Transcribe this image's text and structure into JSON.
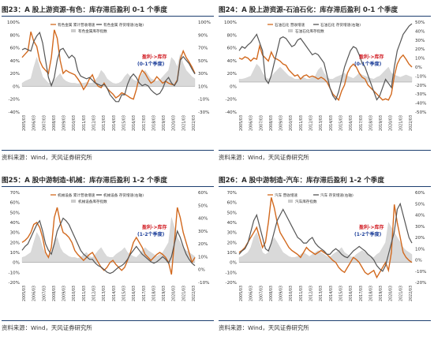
{
  "chart_data": [
    {
      "type": "line",
      "title": "图23：A 股上游资源-有色：库存滞后盈利 0-1 个季度",
      "source": "资料来源：Wind，天风证券研究所",
      "annotation_line1": "盈利->库存",
      "annotation_line2": "(0-1个季度)",
      "legend_position": "top-center",
      "ylim_left": [
        -40,
        100
      ],
      "ylim_right": [
        -30,
        100
      ],
      "yticks_left": [
        "100%",
        "80%",
        "60%",
        "40%",
        "20%",
        "0%",
        "-20%",
        "-40%"
      ],
      "yticks_right": [
        "100%",
        "90%",
        "70%",
        "50%",
        "30%",
        "10%",
        "-10%",
        "-30%"
      ],
      "xticks": [
        "2005/03",
        "2006/03",
        "2007/03",
        "2008/03",
        "2009/03",
        "2010/03",
        "2011/03",
        "2012/03",
        "2013/03",
        "2014/03",
        "2015/03",
        "2016/03",
        "2017/03",
        "2018/03",
        "2019/03",
        "2020/03",
        "2021/03",
        "2022/03"
      ],
      "series": [
        {
          "name": "有色金属 累计营收增速",
          "axis": "left",
          "color": "#d2691e",
          "values": [
            45,
            50,
            55,
            85,
            70,
            62,
            40,
            30,
            25,
            20,
            45,
            88,
            75,
            40,
            20,
            25,
            22,
            20,
            18,
            12,
            5,
            -5,
            2,
            12,
            18,
            6,
            0,
            -2,
            5,
            -3,
            -8,
            -12,
            -18,
            -15,
            -10,
            -12,
            -15,
            -18,
            -20,
            -5,
            15,
            25,
            20,
            12,
            5,
            8,
            15,
            10,
            5,
            8,
            5,
            3,
            2,
            10,
            42,
            55,
            45,
            38,
            30,
            20
          ]
        },
        {
          "name": "有色金属 存货增速(右轴)",
          "axis": "right",
          "color": "#555555",
          "values": [
            60,
            62,
            60,
            58,
            72,
            80,
            85,
            70,
            45,
            20,
            8,
            20,
            45,
            60,
            62,
            55,
            48,
            52,
            48,
            30,
            22,
            20,
            18,
            20,
            16,
            12,
            10,
            8,
            10,
            5,
            -5,
            -10,
            -15,
            -15,
            -5,
            -5,
            10,
            20,
            25,
            20,
            12,
            8,
            10,
            8,
            2,
            -2,
            -5,
            -3,
            4,
            15,
            20,
            12,
            8,
            15,
            45,
            50,
            45,
            40,
            32,
            25
          ]
        },
        {
          "name": "有色金属库存指数",
          "axis": "left",
          "color": "#c8c8c8",
          "kind": "area",
          "values": [
            5,
            8,
            10,
            12,
            30,
            45,
            30,
            15,
            10,
            5,
            5,
            10,
            15,
            20,
            12,
            8,
            6,
            5,
            5,
            4,
            5,
            5,
            6,
            5,
            5,
            10,
            15,
            25,
            20,
            12,
            8,
            5,
            4,
            5,
            8,
            15,
            20,
            15,
            10,
            8,
            12,
            20,
            25,
            18,
            12,
            10,
            8,
            10,
            15,
            20,
            25,
            45,
            40,
            30,
            50,
            35,
            25,
            20,
            15,
            12
          ]
        }
      ]
    },
    {
      "type": "line",
      "title": "图24：A 股上游资源-石油石化：库存滞后盈利 0-1 个季度",
      "source": "资料来源：Wind，天风证券研究所",
      "annotation_line1": "盈利->库存",
      "annotation_line2": "(0-1个季度)",
      "legend_position": "top-center",
      "ylim_left": [
        -50,
        100
      ],
      "ylim_right": [
        -50,
        60
      ],
      "yticks_left": [
        "100%",
        "80%",
        "60%",
        "40%",
        "20%",
        "0%",
        "-20%",
        "-40%"
      ],
      "yticks_right": [
        "50%",
        "40%",
        "30%",
        "20%",
        "10%",
        "0%",
        "-10%",
        "-20%",
        "-30%",
        "-40%",
        "-50%"
      ],
      "xticks": [
        "2005/03",
        "2006/03",
        "2007/03",
        "2008/03",
        "2009/03",
        "2010/03",
        "2011/03",
        "2012/03",
        "2013/03",
        "2014/03",
        "2015/03",
        "2016/03",
        "2017/03",
        "2018/03",
        "2019/03",
        "2020/03",
        "2021/03",
        "2022/03"
      ],
      "series": [
        {
          "name": "石油石化 营收增速",
          "axis": "left",
          "color": "#d2691e",
          "values": [
            40,
            38,
            42,
            40,
            35,
            40,
            38,
            60,
            45,
            40,
            35,
            50,
            40,
            38,
            35,
            30,
            28,
            20,
            15,
            10,
            12,
            5,
            10,
            12,
            8,
            10,
            8,
            5,
            8,
            5,
            0,
            -10,
            -20,
            -25,
            -30,
            -15,
            -5,
            15,
            25,
            30,
            25,
            15,
            8,
            5,
            -5,
            -10,
            -15,
            -20,
            -25,
            -30,
            -28,
            -30,
            -20,
            10,
            30,
            40,
            45,
            38,
            30,
            25
          ]
        },
        {
          "name": "石油石化 存货增速(右轴)",
          "axis": "right",
          "color": "#555555",
          "values": [
            25,
            30,
            28,
            32,
            35,
            40,
            45,
            35,
            25,
            -10,
            -15,
            -5,
            10,
            25,
            40,
            42,
            40,
            35,
            30,
            32,
            38,
            40,
            35,
            30,
            25,
            20,
            22,
            20,
            15,
            10,
            -5,
            -20,
            -30,
            -35,
            -25,
            -10,
            5,
            15,
            25,
            30,
            28,
            20,
            10,
            5,
            -5,
            -15,
            -25,
            -35,
            -30,
            -20,
            -10,
            -15,
            -20,
            5,
            25,
            35,
            45,
            50,
            55,
            58
          ]
        },
        {
          "name": "石油石化库存指数",
          "axis": "left",
          "color": "#c8c8c8",
          "kind": "area",
          "values": [
            5,
            5,
            6,
            8,
            10,
            20,
            30,
            25,
            15,
            8,
            5,
            8,
            15,
            20,
            25,
            20,
            15,
            10,
            8,
            5,
            5,
            6,
            8,
            5,
            5,
            8,
            10,
            20,
            25,
            15,
            8,
            5,
            5,
            8,
            10,
            12,
            15,
            10,
            8,
            6,
            10,
            15,
            12,
            10,
            8,
            6,
            5,
            8,
            10,
            15,
            20,
            25,
            15,
            12,
            10,
            8,
            10,
            12,
            10,
            8
          ]
        }
      ]
    },
    {
      "type": "line",
      "title": "图25：A 股中游制造-机械：库存滞后盈利 1-2 个季度",
      "source": "资料来源：Wind，天风证券研究所",
      "annotation_line1": "盈利->库存",
      "annotation_line2": "(1-2个季度)",
      "legend_position": "top-center",
      "ylim_left": [
        -20,
        70
      ],
      "ylim_right": [
        -10,
        60
      ],
      "yticks_left": [
        "70%",
        "60%",
        "50%",
        "40%",
        "30%",
        "20%",
        "10%",
        "0%",
        "-10%",
        "-20%"
      ],
      "yticks_right": [
        "60%",
        "50%",
        "40%",
        "30%",
        "20%",
        "10%",
        "0%",
        "-10%"
      ],
      "xticks": [
        "2005/03",
        "2006/03",
        "2007/03",
        "2008/03",
        "2009/03",
        "2010/03",
        "2011/03",
        "2012/03",
        "2013/03",
        "2014/03",
        "2015/03",
        "2016/03",
        "2017/03",
        "2018/03",
        "2019/03",
        "2020/03",
        "2021/03",
        "2022/03"
      ],
      "series": [
        {
          "name": "机械设备 累计营收增速",
          "axis": "left",
          "color": "#d2691e",
          "values": [
            20,
            22,
            25,
            30,
            38,
            40,
            35,
            25,
            10,
            5,
            15,
            45,
            55,
            40,
            30,
            28,
            25,
            20,
            12,
            8,
            5,
            2,
            5,
            8,
            10,
            5,
            0,
            -5,
            -8,
            -5,
            0,
            2,
            -2,
            -5,
            -8,
            -5,
            2,
            10,
            20,
            25,
            20,
            15,
            8,
            5,
            2,
            5,
            8,
            10,
            8,
            5,
            0,
            -12,
            20,
            55,
            45,
            30,
            20,
            10,
            0,
            5
          ]
        },
        {
          "name": "机械设备 存货增速(右轴)",
          "axis": "right",
          "color": "#555555",
          "values": [
            15,
            18,
            20,
            25,
            30,
            35,
            38,
            30,
            20,
            15,
            12,
            20,
            30,
            35,
            40,
            38,
            35,
            30,
            25,
            20,
            15,
            12,
            10,
            8,
            8,
            5,
            3,
            2,
            0,
            -2,
            -3,
            -2,
            0,
            2,
            3,
            5,
            8,
            12,
            15,
            18,
            15,
            12,
            10,
            8,
            6,
            5,
            6,
            8,
            10,
            8,
            5,
            10,
            20,
            30,
            25,
            18,
            12,
            8,
            5,
            3
          ]
        },
        {
          "name": "机械设备库存指数",
          "axis": "left",
          "color": "#c8c8c8",
          "kind": "area",
          "values": [
            5,
            6,
            8,
            10,
            20,
            30,
            25,
            15,
            8,
            5,
            10,
            20,
            25,
            15,
            10,
            8,
            6,
            5,
            5,
            4,
            5,
            8,
            10,
            6,
            5,
            8,
            12,
            15,
            10,
            6,
            5,
            5,
            8,
            10,
            12,
            15,
            10,
            8,
            6,
            5,
            8,
            12,
            15,
            12,
            10,
            8,
            6,
            8,
            10,
            15,
            20,
            45,
            35,
            25,
            20,
            15,
            12,
            10,
            8,
            6
          ]
        }
      ]
    },
    {
      "type": "line",
      "title": "图26：A 股中游制造-汽车：库存滞后盈利 1-2 个季度",
      "source": "资料来源：Wind，天风证券研究所",
      "annotation_line1": "盈利->库存",
      "annotation_line2": "(1-2个季度)",
      "legend_position": "top-center",
      "ylim_left": [
        -20,
        70
      ],
      "ylim_right": [
        -20,
        60
      ],
      "yticks_left": [
        "70%",
        "60%",
        "50%",
        "40%",
        "30%",
        "20%",
        "10%",
        "0%",
        "-10%",
        "-20%"
      ],
      "yticks_right": [
        "60%",
        "50%",
        "40%",
        "30%",
        "20%",
        "10%",
        "0%",
        "-10%",
        "-20%"
      ],
      "xticks": [
        "2005/03",
        "2006/03",
        "2007/03",
        "2008/03",
        "2009/03",
        "2010/03",
        "2011/03",
        "2012/03",
        "2013/03",
        "2014/03",
        "2015/03",
        "2016/03",
        "2017/03",
        "2018/03",
        "2019/03",
        "2020/03",
        "2021/03",
        "2022/03"
      ],
      "series": [
        {
          "name": "汽车 营收增速",
          "axis": "left",
          "color": "#d2691e",
          "values": [
            10,
            12,
            15,
            20,
            25,
            30,
            35,
            25,
            15,
            20,
            40,
            65,
            55,
            40,
            30,
            25,
            20,
            15,
            12,
            10,
            8,
            5,
            10,
            15,
            12,
            10,
            8,
            10,
            12,
            10,
            8,
            5,
            2,
            0,
            -5,
            -8,
            -10,
            -5,
            0,
            5,
            3,
            0,
            -5,
            -10,
            -12,
            -10,
            -8,
            -15,
            -10,
            -5,
            0,
            -8,
            10,
            58,
            40,
            25,
            10,
            5,
            2,
            0
          ]
        },
        {
          "name": "汽车 存货增速(右轴)",
          "axis": "right",
          "color": "#555555",
          "values": [
            5,
            8,
            10,
            15,
            25,
            35,
            40,
            30,
            20,
            10,
            8,
            15,
            25,
            35,
            40,
            45,
            40,
            35,
            30,
            25,
            20,
            18,
            15,
            15,
            18,
            20,
            15,
            12,
            10,
            8,
            5,
            5,
            8,
            10,
            8,
            5,
            3,
            2,
            5,
            8,
            10,
            12,
            10,
            8,
            5,
            3,
            0,
            -5,
            -8,
            -10,
            -5,
            5,
            15,
            25,
            45,
            50,
            40,
            30,
            20,
            15
          ]
        },
        {
          "name": "汽车库存指数",
          "axis": "left",
          "color": "#c8c8c8",
          "kind": "area",
          "values": [
            5,
            6,
            8,
            10,
            15,
            25,
            30,
            20,
            10,
            8,
            10,
            20,
            25,
            20,
            15,
            10,
            8,
            6,
            5,
            5,
            6,
            8,
            10,
            8,
            6,
            8,
            10,
            12,
            10,
            8,
            6,
            5,
            8,
            10,
            12,
            15,
            10,
            8,
            6,
            5,
            8,
            10,
            12,
            10,
            8,
            6,
            5,
            8,
            10,
            15,
            20,
            40,
            35,
            30,
            25,
            20,
            15,
            12,
            10,
            8
          ]
        }
      ]
    }
  ]
}
